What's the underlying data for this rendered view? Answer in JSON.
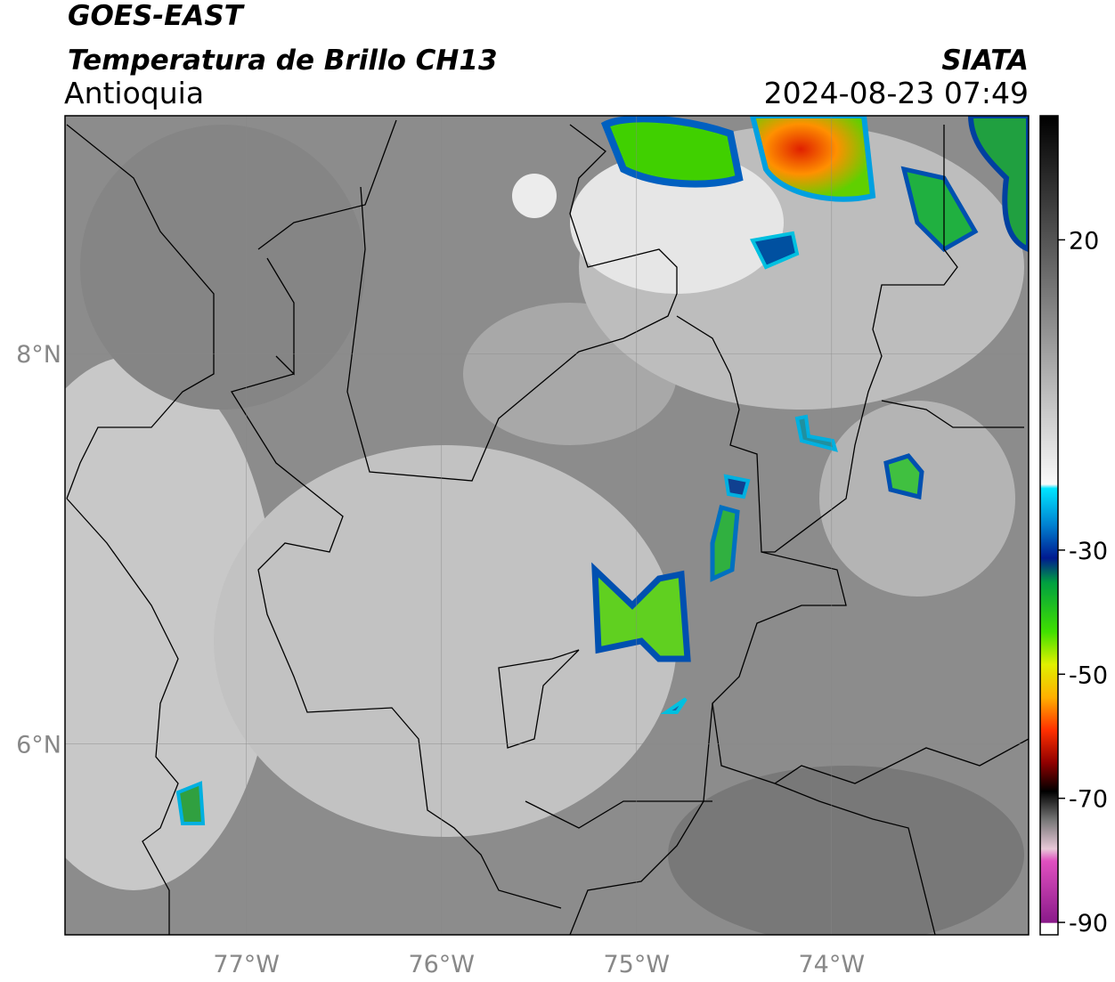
{
  "header": {
    "satellite": "GOES-EAST",
    "product": "Temperatura de Brillo CH13",
    "region": "Antioquia",
    "source": "SIATA",
    "datetime": "2024-08-23 07:49"
  },
  "map": {
    "lonlim": [
      -77.93,
      -72.99
    ],
    "latlim": [
      5.02,
      9.22
    ],
    "lonticks": [
      {
        "value": -77,
        "label": "77°W"
      },
      {
        "value": -76,
        "label": "76°W"
      },
      {
        "value": -75,
        "label": "75°W"
      },
      {
        "value": -74,
        "label": "74°W"
      }
    ],
    "latticks": [
      {
        "value": 8,
        "label": "8°N"
      },
      {
        "value": 6,
        "label": "6°N"
      }
    ],
    "grid": true
  },
  "colorbar": {
    "range": [
      -92,
      40
    ],
    "ticks": [
      20,
      -30,
      -50,
      -70,
      -90
    ]
  }
}
